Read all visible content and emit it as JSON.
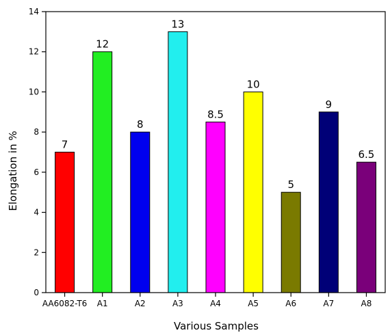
{
  "chart_data": {
    "type": "bar",
    "categories": [
      "AA6082-T6",
      "A1",
      "A2",
      "A3",
      "A4",
      "A5",
      "A6",
      "A7",
      "A8"
    ],
    "values": [
      7,
      12,
      8,
      13,
      8.5,
      10,
      5,
      9,
      6.5
    ],
    "value_labels": [
      "7",
      "12",
      "8",
      "13",
      "8.5",
      "10",
      "5",
      "9",
      "6.5"
    ],
    "colors": [
      "#ff0000",
      "#22ee22",
      "#0000ee",
      "#22eeee",
      "#ff00ff",
      "#ffff00",
      "#7a7a00",
      "#000077",
      "#7a007a"
    ],
    "xlabel": "Various Samples",
    "ylabel": "Elongation in %",
    "ylim": [
      0,
      14
    ],
    "yticks": [
      0,
      2,
      4,
      6,
      8,
      10,
      12,
      14
    ],
    "grid": false
  }
}
